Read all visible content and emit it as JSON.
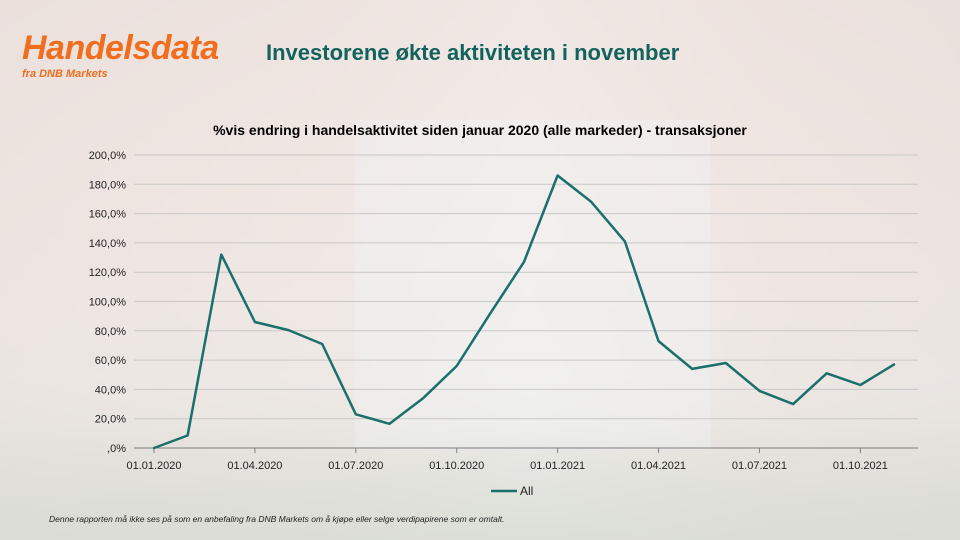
{
  "brand": {
    "title": "Handelsdata",
    "subtitle": "fra DNB Markets"
  },
  "headline": "Investorene økte aktiviteten i november",
  "disclaimer": "Denne rapporten må ikke ses på som en anbefaling fra DNB Markets om å kjøpe eller selge verdipapirene som er omtalt.",
  "colors": {
    "brand_orange": "#f06e1e",
    "headline_teal": "#14625d",
    "series": "#1b6f6c"
  },
  "chart_data": {
    "type": "line",
    "title": "%vis endring i handelsaktivitet siden januar 2020 (alle markeder) - transaksjoner",
    "xlabel": "",
    "ylabel": "",
    "ylim": [
      0,
      200
    ],
    "y_ticks": [
      "200,0%",
      "180,0%",
      "160,0%",
      "140,0%",
      "120,0%",
      "100,0%",
      "80,0%",
      "60,0%",
      "40,0%",
      "20,0%",
      ",0%"
    ],
    "y_tick_values": [
      200,
      180,
      160,
      140,
      120,
      100,
      80,
      60,
      40,
      20,
      0
    ],
    "x_ticks": [
      "01.01.2020",
      "01.04.2020",
      "01.07.2020",
      "01.10.2020",
      "01.01.2021",
      "01.04.2021",
      "01.07.2021",
      "01.10.2021"
    ],
    "x": [
      "2020-01",
      "2020-02",
      "2020-03",
      "2020-04",
      "2020-05",
      "2020-06",
      "2020-07",
      "2020-08",
      "2020-09",
      "2020-10",
      "2020-11",
      "2020-12",
      "2021-01",
      "2021-02",
      "2021-03",
      "2021-04",
      "2021-05",
      "2021-06",
      "2021-07",
      "2021-08",
      "2021-09",
      "2021-10",
      "2021-11"
    ],
    "series": [
      {
        "name": "All",
        "values": [
          0,
          8.5,
          132,
          86,
          80.5,
          71,
          23,
          16.5,
          34,
          56,
          92,
          127,
          186,
          168,
          141,
          73,
          54,
          58,
          39,
          30,
          51,
          43,
          57
        ]
      }
    ],
    "grid": true,
    "legend": "bottom"
  }
}
